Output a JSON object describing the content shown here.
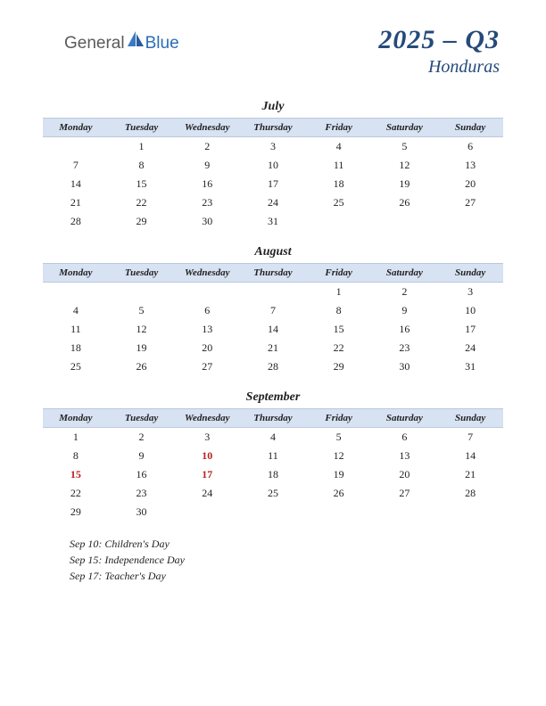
{
  "logo": {
    "text1": "General",
    "text2": "Blue"
  },
  "header": {
    "title": "2025 – Q3",
    "country": "Honduras"
  },
  "day_headers": [
    "Monday",
    "Tuesday",
    "Wednesday",
    "Thursday",
    "Friday",
    "Saturday",
    "Sunday"
  ],
  "months": [
    {
      "name": "July",
      "header_bg": "#d7e2f2",
      "weeks": [
        [
          "",
          "1",
          "2",
          "3",
          "4",
          "5",
          "6"
        ],
        [
          "7",
          "8",
          "9",
          "10",
          "11",
          "12",
          "13"
        ],
        [
          "14",
          "15",
          "16",
          "17",
          "18",
          "19",
          "20"
        ],
        [
          "21",
          "22",
          "23",
          "24",
          "25",
          "26",
          "27"
        ],
        [
          "28",
          "29",
          "30",
          "31",
          "",
          "",
          ""
        ]
      ],
      "holidays": []
    },
    {
      "name": "August",
      "header_bg": "#d7e2f2",
      "weeks": [
        [
          "",
          "",
          "",
          "",
          "1",
          "2",
          "3"
        ],
        [
          "4",
          "5",
          "6",
          "7",
          "8",
          "9",
          "10"
        ],
        [
          "11",
          "12",
          "13",
          "14",
          "15",
          "16",
          "17"
        ],
        [
          "18",
          "19",
          "20",
          "21",
          "22",
          "23",
          "24"
        ],
        [
          "25",
          "26",
          "27",
          "28",
          "29",
          "30",
          "31"
        ]
      ],
      "holidays": []
    },
    {
      "name": "September",
      "header_bg": "#d7e2f2",
      "weeks": [
        [
          "1",
          "2",
          "3",
          "4",
          "5",
          "6",
          "7"
        ],
        [
          "8",
          "9",
          "10",
          "11",
          "12",
          "13",
          "14"
        ],
        [
          "15",
          "16",
          "17",
          "18",
          "19",
          "20",
          "21"
        ],
        [
          "22",
          "23",
          "24",
          "25",
          "26",
          "27",
          "28"
        ],
        [
          "29",
          "30",
          "",
          "",
          "",
          "",
          ""
        ]
      ],
      "holidays": [
        "10",
        "15",
        "17"
      ]
    }
  ],
  "holiday_list": [
    "Sep 10: Children's Day",
    "Sep 15: Independence Day",
    "Sep 17: Teacher's Day"
  ],
  "colors": {
    "header_bg": "#d7e2f2",
    "header_border": "#bcc9de",
    "title_color": "#254a7a",
    "holiday_color": "#b82020",
    "text_color": "#222222"
  }
}
